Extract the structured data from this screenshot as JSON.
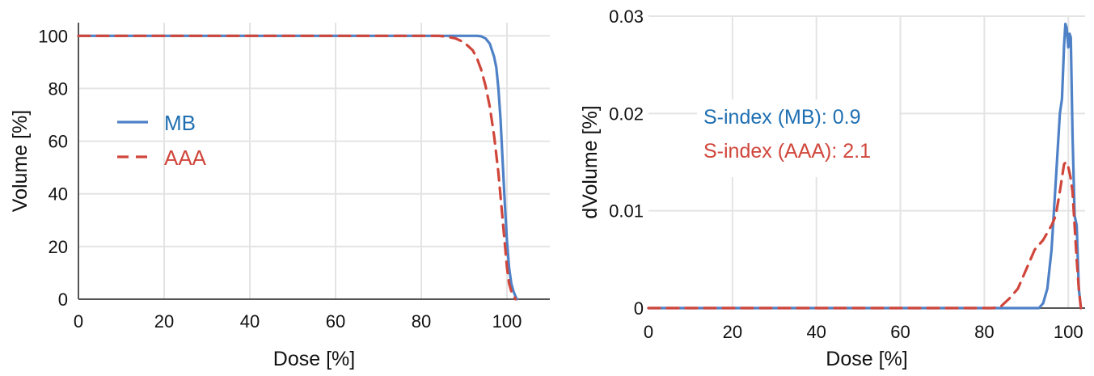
{
  "chart_data": [
    {
      "type": "line",
      "xlabel": "Dose [%]",
      "ylabel": "Volume [%]",
      "xlim": [
        0,
        110
      ],
      "ylim": [
        0,
        105
      ],
      "xticks": [
        "0",
        "20",
        "40",
        "60",
        "80",
        "100"
      ],
      "xtick_values": [
        0,
        20,
        40,
        60,
        80,
        100
      ],
      "yticks": [
        "0",
        "20",
        "40",
        "60",
        "80",
        "100"
      ],
      "ytick_values": [
        0,
        20,
        40,
        60,
        80,
        100
      ],
      "grid": true,
      "legend_placement": "center-left",
      "series": [
        {
          "name": "MB",
          "style": "solid",
          "color": "#4f81c7",
          "x": [
            0,
            80,
            90,
            93,
            94,
            95,
            96,
            97,
            97.5,
            98,
            98.5,
            99,
            99.5,
            100,
            100.5,
            101,
            101.5,
            102,
            102.3
          ],
          "y": [
            100,
            100,
            100,
            100,
            99.8,
            99,
            97,
            92,
            88,
            80,
            68,
            52,
            36,
            22,
            12,
            6,
            3,
            1,
            0
          ]
        },
        {
          "name": "AAA",
          "style": "dashed",
          "color": "#d0463b",
          "x": [
            0,
            84,
            86,
            88,
            90,
            92,
            93,
            94,
            95,
            96,
            97,
            98,
            99,
            100,
            100.5,
            101,
            102
          ],
          "y": [
            100,
            100,
            99.7,
            99,
            97.5,
            94.5,
            91.5,
            87,
            81,
            73,
            62,
            48,
            30,
            12,
            6,
            3,
            0
          ]
        }
      ]
    },
    {
      "type": "line",
      "xlabel": "Dose [%]",
      "ylabel": "dVolume [%]",
      "xlim": [
        0,
        104
      ],
      "ylim": [
        0,
        0.03
      ],
      "xticks": [
        "0",
        "20",
        "40",
        "60",
        "80",
        "100"
      ],
      "xtick_values": [
        0,
        20,
        40,
        60,
        80,
        100
      ],
      "yticks": [
        "0",
        "0.01",
        "0.02",
        "0.03"
      ],
      "ytick_values": [
        0,
        0.01,
        0.02,
        0.03
      ],
      "grid": true,
      "annotations": [
        {
          "text": "S-index (MB): 0.9",
          "color": "#1f6fb2"
        },
        {
          "text": "S-index (AAA): 2.1",
          "color": "#d0463b"
        }
      ],
      "series": [
        {
          "name": "MB",
          "style": "solid",
          "color": "#4f81c7",
          "x": [
            0,
            90,
            93,
            94,
            95,
            96,
            97,
            98,
            98.5,
            99,
            99.3,
            99.6,
            100,
            100.3,
            100.6,
            101,
            101.5,
            102,
            102.5,
            103
          ],
          "y": [
            0,
            0,
            0,
            0.0005,
            0.002,
            0.006,
            0.013,
            0.02,
            0.0215,
            0.027,
            0.0292,
            0.0288,
            0.0268,
            0.0282,
            0.0278,
            0.018,
            0.0095,
            0.0085,
            0.002,
            0
          ]
        },
        {
          "name": "AAA",
          "style": "dashed",
          "color": "#d0463b",
          "x": [
            0,
            82,
            84,
            86,
            88,
            90,
            92,
            94,
            96,
            97,
            98,
            99,
            99.5,
            100,
            100.5,
            101,
            102,
            102.5,
            103
          ],
          "y": [
            0,
            0,
            0.0002,
            0.001,
            0.002,
            0.004,
            0.006,
            0.007,
            0.0085,
            0.0095,
            0.012,
            0.0148,
            0.015,
            0.0145,
            0.0135,
            0.012,
            0.005,
            0.002,
            0
          ]
        }
      ]
    }
  ]
}
